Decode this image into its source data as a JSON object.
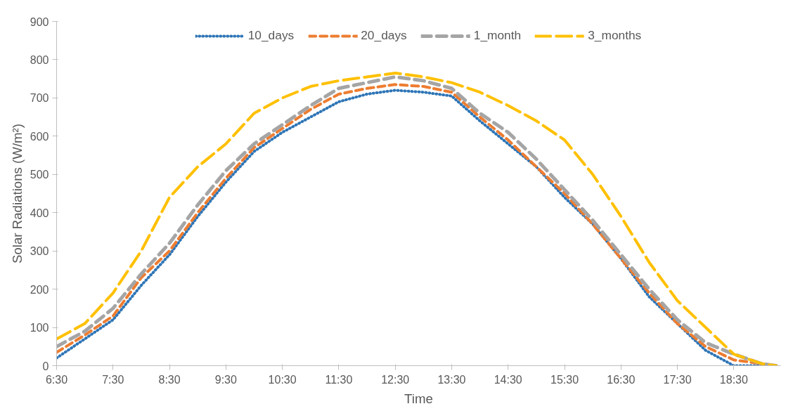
{
  "chart_data": {
    "type": "line",
    "xlabel": "Time",
    "ylabel": "Solar Radiations (W/m²)",
    "x": [
      6.5,
      7,
      7.5,
      8,
      8.5,
      9,
      9.5,
      10,
      10.5,
      11,
      11.5,
      12,
      12.5,
      13,
      13.5,
      14,
      14.5,
      15,
      15.5,
      16,
      16.5,
      17,
      17.5,
      18,
      18.5,
      19,
      19.25
    ],
    "series": [
      {
        "name": "10_days",
        "color": "#2e75b6",
        "line_style": "dotted",
        "values": [
          20,
          70,
          120,
          210,
          290,
          390,
          480,
          560,
          610,
          650,
          690,
          710,
          720,
          715,
          705,
          640,
          580,
          520,
          440,
          370,
          280,
          180,
          110,
          40,
          0,
          0,
          0
        ]
      },
      {
        "name": "20_days",
        "color": "#ed7d31",
        "line_style": "dashed",
        "values": [
          35,
          80,
          130,
          230,
          300,
          400,
          490,
          570,
          620,
          670,
          710,
          725,
          735,
          730,
          715,
          650,
          590,
          520,
          450,
          370,
          280,
          190,
          110,
          50,
          15,
          5,
          0
        ]
      },
      {
        "name": "1_month",
        "color": "#a5a5a5",
        "line_style": "dashed",
        "values": [
          50,
          90,
          150,
          240,
          320,
          420,
          510,
          580,
          630,
          680,
          725,
          740,
          755,
          745,
          725,
          660,
          610,
          540,
          460,
          380,
          290,
          200,
          120,
          60,
          30,
          5,
          0
        ]
      },
      {
        "name": "3_months",
        "color": "#ffc000",
        "line_style": "dashed",
        "values": [
          70,
          110,
          190,
          300,
          440,
          520,
          580,
          660,
          700,
          730,
          745,
          755,
          765,
          755,
          740,
          715,
          680,
          640,
          590,
          500,
          390,
          270,
          170,
          100,
          30,
          5,
          0
        ]
      }
    ],
    "xlim": [
      6.5,
      19.33
    ],
    "xticks": [
      {
        "value": 6.5,
        "label": "6:30"
      },
      {
        "value": 7.5,
        "label": "7:30"
      },
      {
        "value": 8.5,
        "label": "8:30"
      },
      {
        "value": 9.5,
        "label": "9:30"
      },
      {
        "value": 10.5,
        "label": "10:30"
      },
      {
        "value": 11.5,
        "label": "11:30"
      },
      {
        "value": 12.5,
        "label": "12:30"
      },
      {
        "value": 13.5,
        "label": "13:30"
      },
      {
        "value": 14.5,
        "label": "14:30"
      },
      {
        "value": 15.5,
        "label": "15:30"
      },
      {
        "value": 16.5,
        "label": "16:30"
      },
      {
        "value": 17.5,
        "label": "17:30"
      },
      {
        "value": 18.5,
        "label": "18:30"
      }
    ],
    "ylim": [
      0,
      900
    ],
    "yticks": [
      0,
      100,
      200,
      300,
      400,
      500,
      600,
      700,
      800,
      900
    ],
    "grid": false,
    "legend": "top"
  }
}
